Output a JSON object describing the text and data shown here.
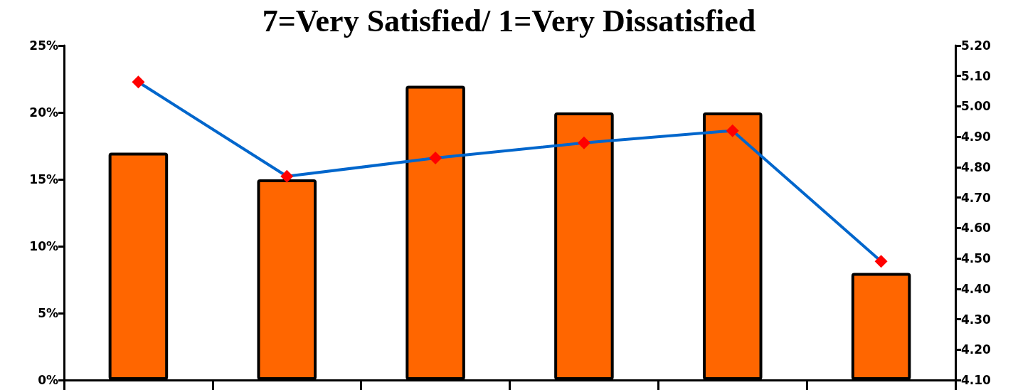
{
  "chart_data": {
    "type": "bar",
    "title": "7=Very Satisfied/ 1=Very Dissatisfied",
    "categories": [
      null,
      null,
      null,
      null,
      null,
      null
    ],
    "series": [
      {
        "color": "#ff6600",
        "values": [
          17,
          15,
          22,
          20,
          20,
          8
        ]
      },
      {
        "type": "line",
        "axis": "y2",
        "color": "#0066cc",
        "colors": [
          "#ff0000",
          "#ff0000",
          "#ff0000",
          "#ff0000",
          "#ff0000",
          "#ff0000"
        ],
        "marker": "diamond",
        "values": [
          5.08,
          4.77,
          4.83,
          4.88,
          4.92,
          4.49
        ]
      }
    ],
    "ylim": [
      0,
      25
    ],
    "yticks": [
      {
        "value": 0,
        "label": "0%"
      },
      {
        "value": 5,
        "label": "5%"
      },
      {
        "value": 10,
        "label": "10%"
      },
      {
        "value": 15,
        "label": "15%"
      },
      {
        "value": 20,
        "label": "20%"
      },
      {
        "value": 25,
        "label": "25%"
      }
    ],
    "y2lim": [
      4.1,
      5.2
    ],
    "y2ticks": [
      {
        "value": 4.1,
        "label": "4.10"
      },
      {
        "value": 4.2,
        "label": "4.20"
      },
      {
        "value": 4.3,
        "label": "4.30"
      },
      {
        "value": 4.4,
        "label": "4.40"
      },
      {
        "value": 4.5,
        "label": "4.50"
      },
      {
        "value": 4.6,
        "label": "4.60"
      },
      {
        "value": 4.7,
        "label": "4.70"
      },
      {
        "value": 4.8,
        "label": "4.80"
      },
      {
        "value": 4.9,
        "label": "4.90"
      },
      {
        "value": 5.0,
        "label": "5.00"
      },
      {
        "value": 5.1,
        "label": "5.10"
      },
      {
        "value": 5.2,
        "label": "5.20"
      }
    ],
    "grid": false
  }
}
